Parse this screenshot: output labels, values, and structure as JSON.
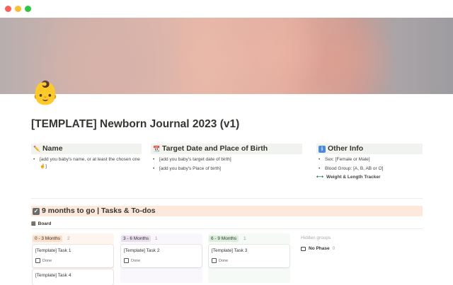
{
  "window": {
    "controls": [
      "close",
      "minimize",
      "maximize"
    ],
    "colors": {
      "close": "#fe5f57",
      "minimize": "#febc2e",
      "maximize": "#28c840"
    }
  },
  "page": {
    "icon": "👶",
    "title": "[TEMPLATE] Newborn Journal 2023 (v1)"
  },
  "sections": {
    "name": {
      "icon": "pencil-icon",
      "icon_glyph": "✏️",
      "title": "Name",
      "bullets": [
        "[add you baby's name, or at least the chosen one 🤞]"
      ]
    },
    "target": {
      "icon": "calendar-icon",
      "icon_glyph": "📆",
      "title": "Target Date and Place of Birth",
      "bullets": [
        "[add you baby's target date of birth]",
        "[add you baby's Place of birth]"
      ]
    },
    "other": {
      "icon": "info-icon",
      "icon_glyph": "ℹ️",
      "title": "Other Info",
      "bullets": [
        "Sex: [Female or Male]",
        "Blood Group: [A, B, AB or O]"
      ],
      "link": {
        "icon": "dumbbell-icon",
        "label": "Weight & Length Tracker"
      }
    }
  },
  "tasks": {
    "icon": "checkbox-icon",
    "title": "9 months to go | Tasks & To-dos",
    "view_tab": "Board",
    "groups": [
      {
        "label": "0 - 3 Months",
        "count": "2",
        "color": "#fadec9",
        "bg": "#fdf6f0",
        "cards": [
          {
            "title": "[Template] Task 1",
            "check": "Done"
          },
          {
            "title": "[Template] Task 4"
          }
        ]
      },
      {
        "label": "3 - 6 Months",
        "count": "1",
        "color": "#e8deee",
        "bg": "#f9f7fb",
        "cards": [
          {
            "title": "[Template] Task 2",
            "check": "Done"
          }
        ]
      },
      {
        "label": "6 - 9 Months",
        "count": "1",
        "color": "#dbeddb",
        "bg": "#f6faf6",
        "cards": [
          {
            "title": "[Template] Task 3",
            "check": "Done"
          }
        ]
      }
    ],
    "hidden": {
      "label": "Hidden groups",
      "items": [
        {
          "label": "No Phase",
          "count": "0"
        }
      ]
    }
  }
}
